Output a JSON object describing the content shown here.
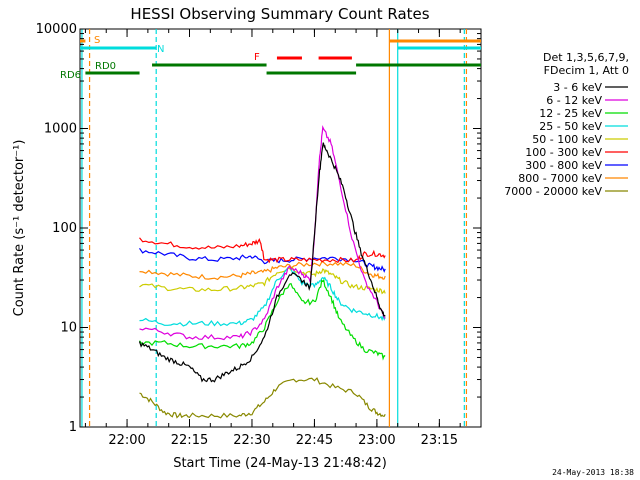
{
  "chart_data": {
    "type": "line",
    "title": "HESSI Observing Summary Count Rates",
    "xlabel": "Start Time (24-May-13 21:48:42)",
    "ylabel": "Count Rate (s⁻¹ detector⁻¹)",
    "yscale": "log",
    "ylim": [
      1,
      10000
    ],
    "y_ticks": [
      {
        "value": 1,
        "label": "1"
      },
      {
        "value": 10,
        "label": "10"
      },
      {
        "value": 100,
        "label": "100"
      },
      {
        "value": 1000,
        "label": "1000"
      },
      {
        "value": 10000,
        "label": "10000"
      }
    ],
    "xlim": [
      "21:48:42",
      "23:25:00"
    ],
    "x_ticks": [
      "22:00",
      "22:15",
      "22:30",
      "22:45",
      "23:00",
      "23:15"
    ],
    "grid": false,
    "legend_placement": "right",
    "legend_header": [
      "Det 1,3,5,6,7,9,",
      "FDecim 1, Att 0"
    ],
    "series": [
      {
        "name": "3 - 6 keV",
        "color": "#000000",
        "x": [
          "22:03",
          "22:06",
          "22:09",
          "22:12",
          "22:15",
          "22:18",
          "22:21",
          "22:24",
          "22:27",
          "22:30",
          "22:33",
          "22:36",
          "22:39",
          "22:42",
          "22:44",
          "22:46",
          "22:47",
          "22:48",
          "22:50",
          "22:52",
          "22:54",
          "22:56",
          "22:58",
          "23:00",
          "23:01",
          "23:02"
        ],
        "y": [
          7,
          6,
          5,
          4.5,
          4,
          3,
          3,
          3.5,
          4,
          5,
          8,
          20,
          35,
          30,
          25,
          300,
          700,
          600,
          400,
          250,
          120,
          60,
          35,
          20,
          15,
          13
        ]
      },
      {
        "name": "6 - 12 keV",
        "color": "#dd00dd",
        "x": [
          "22:03",
          "22:09",
          "22:15",
          "22:21",
          "22:27",
          "22:30",
          "22:33",
          "22:36",
          "22:39",
          "22:42",
          "22:44",
          "22:45",
          "22:46",
          "22:47",
          "22:49",
          "22:51",
          "22:54",
          "22:57",
          "23:00",
          "23:02"
        ],
        "y": [
          10,
          9,
          8,
          8,
          8,
          9,
          12,
          25,
          40,
          35,
          30,
          80,
          400,
          1000,
          700,
          300,
          80,
          30,
          18,
          12
        ]
      },
      {
        "name": "12 - 25 keV",
        "color": "#00dd00",
        "x": [
          "22:03",
          "22:09",
          "22:15",
          "22:21",
          "22:27",
          "22:30",
          "22:33",
          "22:36",
          "22:39",
          "22:42",
          "22:45",
          "22:47",
          "22:49",
          "22:51",
          "22:54",
          "22:57",
          "23:00",
          "23:02"
        ],
        "y": [
          7,
          7,
          6.5,
          6.5,
          6.5,
          7,
          10,
          18,
          28,
          18,
          18,
          30,
          20,
          12,
          8,
          6,
          5.5,
          5
        ]
      },
      {
        "name": "25 - 50 keV",
        "color": "#00dddd",
        "x": [
          "22:03",
          "22:09",
          "22:15",
          "22:21",
          "22:27",
          "22:30",
          "22:33",
          "22:36",
          "22:39",
          "22:42",
          "22:45",
          "22:47",
          "22:49",
          "22:51",
          "22:54",
          "22:57",
          "23:00",
          "23:02"
        ],
        "y": [
          12,
          11,
          11,
          11,
          11,
          12,
          16,
          30,
          40,
          28,
          26,
          32,
          25,
          18,
          15,
          14,
          13,
          12
        ]
      },
      {
        "name": "50 - 100 keV",
        "color": "#cccc00",
        "x": [
          "22:03",
          "22:09",
          "22:15",
          "22:21",
          "22:27",
          "22:30",
          "22:33",
          "22:36",
          "22:39",
          "22:42",
          "22:45",
          "22:47",
          "22:49",
          "22:51",
          "22:54",
          "22:57",
          "23:00",
          "23:02"
        ],
        "y": [
          27,
          25,
          24,
          24,
          25,
          26,
          28,
          36,
          40,
          36,
          34,
          38,
          34,
          30,
          26,
          25,
          24,
          23
        ]
      },
      {
        "name": "100 - 300 keV",
        "color": "#ff0000",
        "x": [
          "22:03",
          "22:09",
          "22:15",
          "22:21",
          "22:27",
          "22:30",
          "22:32",
          "22:33",
          "22:36",
          "22:40",
          "22:45",
          "22:50",
          "22:55",
          "22:57",
          "23:00",
          "23:02"
        ],
        "y": [
          78,
          70,
          65,
          63,
          66,
          70,
          75,
          48,
          48,
          48,
          48,
          48,
          47,
          55,
          55,
          53
        ]
      },
      {
        "name": "300 - 800 keV",
        "color": "#0000ff",
        "x": [
          "22:03",
          "22:09",
          "22:15",
          "22:21",
          "22:27",
          "22:30",
          "22:33",
          "22:36",
          "22:40",
          "22:45",
          "22:50",
          "22:55",
          "22:58",
          "23:00",
          "23:02"
        ],
        "y": [
          60,
          55,
          50,
          48,
          50,
          52,
          46,
          47,
          48,
          50,
          50,
          48,
          42,
          40,
          38
        ]
      },
      {
        "name": "800 - 7000 keV",
        "color": "#ff8800",
        "x": [
          "22:03",
          "22:09",
          "22:15",
          "22:21",
          "22:27",
          "22:30",
          "22:33",
          "22:36",
          "22:40",
          "22:45",
          "22:50",
          "22:55",
          "22:58",
          "23:00",
          "23:02"
        ],
        "y": [
          38,
          35,
          33,
          32,
          33,
          35,
          36,
          40,
          42,
          44,
          44,
          42,
          35,
          33,
          32
        ]
      },
      {
        "name": "7000 - 20000 keV",
        "color": "#888800",
        "x": [
          "22:03",
          "22:06",
          "22:09",
          "22:12",
          "22:15",
          "22:21",
          "22:27",
          "22:30",
          "22:33",
          "22:36",
          "22:40",
          "22:45",
          "22:50",
          "22:55",
          "22:58",
          "23:00",
          "23:02"
        ],
        "y": [
          2.2,
          1.8,
          1.4,
          1.3,
          1.3,
          1.3,
          1.3,
          1.4,
          1.8,
          2.5,
          3,
          3,
          2.5,
          2.2,
          1.6,
          1.4,
          1.3
        ]
      }
    ],
    "state_bars": [
      {
        "label": "S",
        "color": "#ff8800",
        "row": "top",
        "segments": [
          [
            "21:48:42",
            "21:50:00"
          ],
          [
            "23:03:00",
            "23:25:00"
          ]
        ]
      },
      {
        "label": "N",
        "color": "#00dddd",
        "row": "upper",
        "segments": [
          [
            "21:48:42",
            "22:07:00"
          ],
          [
            "23:05:00",
            "23:25:00"
          ]
        ]
      },
      {
        "label": "F",
        "color": "#ff0000",
        "row": "middle",
        "segments": [
          [
            "22:36:00",
            "22:42:00"
          ],
          [
            "22:46:00",
            "22:54:00"
          ]
        ]
      },
      {
        "label": "RD0",
        "color": "#007700",
        "row": "rd0",
        "segments": [
          [
            "22:06:00",
            "22:33:30"
          ],
          [
            "22:55:00",
            "23:25:00"
          ]
        ]
      },
      {
        "label": "RD6",
        "color": "#007700",
        "row": "rd6",
        "segments": [
          [
            "21:50:00",
            "22:03:00"
          ],
          [
            "22:33:30",
            "22:55:00"
          ]
        ]
      }
    ],
    "markers": [
      {
        "time": "21:49:10",
        "color": "#00dddd"
      },
      {
        "time": "21:51:00",
        "color": "#ff8800",
        "dashed": true
      },
      {
        "time": "22:07:00",
        "color": "#00dddd",
        "dashed": true
      },
      {
        "time": "23:03:00",
        "color": "#ff8800"
      },
      {
        "time": "23:05:00",
        "color": "#00dddd"
      },
      {
        "time": "23:21:00",
        "color": "#00dddd",
        "dashed": true
      },
      {
        "time": "23:21:30",
        "color": "#ff8800",
        "dashed": true
      }
    ]
  },
  "footer_timestamp": "24-May-2013 18:38"
}
